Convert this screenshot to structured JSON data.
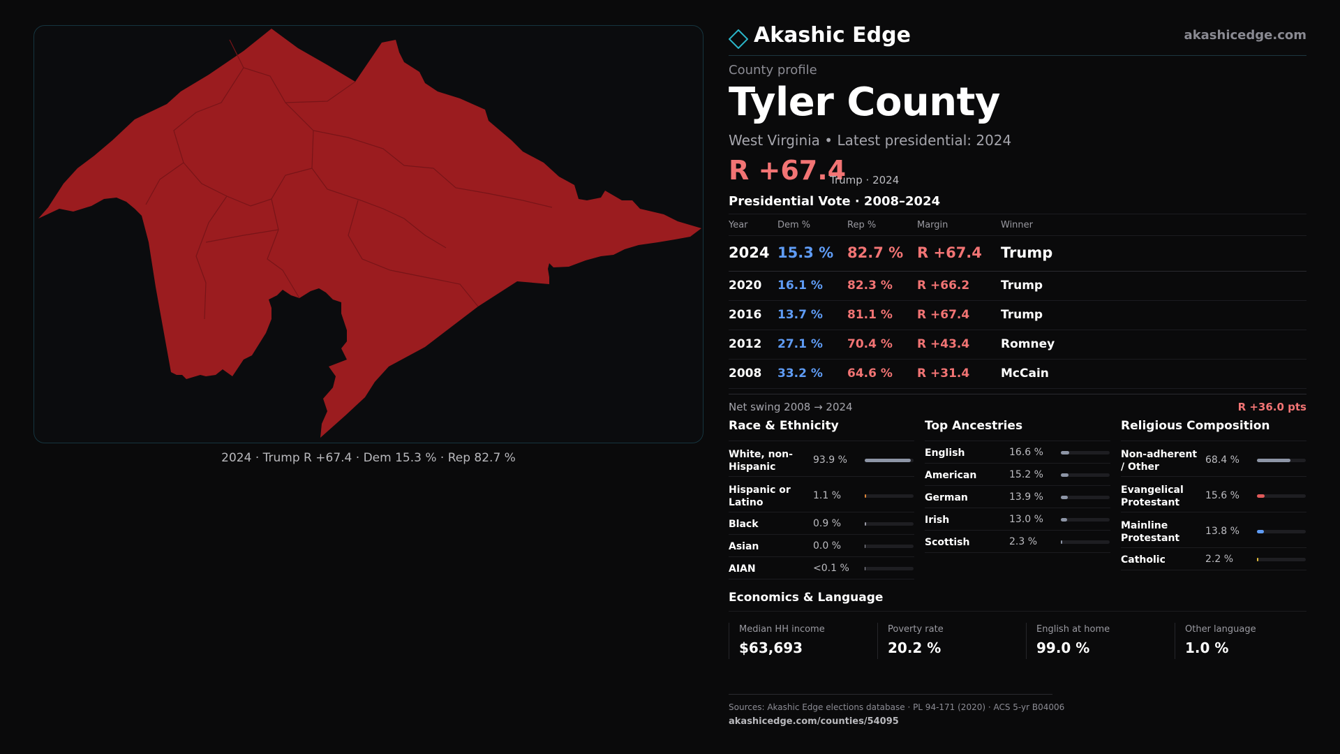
{
  "brand": {
    "name": "Akashic Edge",
    "url": "akashicedge.com"
  },
  "header": {
    "eyebrow": "County profile",
    "county": "Tyler County",
    "subtitle": "West Virginia • Latest presidential: 2024",
    "margin": "R +67.4",
    "margin_note": "Trump · 2024"
  },
  "map": {
    "caption": "2024 · Trump R +67.4 · Dem 15.3 % · Rep 82.7 %",
    "fill_color": "#9b1c1f"
  },
  "vote": {
    "heading": "Presidential Vote · 2008–2024",
    "columns": {
      "year": "Year",
      "dem": "Dem %",
      "rep": "Rep %",
      "margin": "Margin",
      "winner": "Winner"
    },
    "rows": [
      {
        "year": "2024",
        "dem": "15.3 %",
        "rep": "82.7 %",
        "margin": "R +67.4",
        "winner": "Trump"
      },
      {
        "year": "2020",
        "dem": "16.1 %",
        "rep": "82.3 %",
        "margin": "R +66.2",
        "winner": "Trump"
      },
      {
        "year": "2016",
        "dem": "13.7 %",
        "rep": "81.1 %",
        "margin": "R +67.4",
        "winner": "Trump"
      },
      {
        "year": "2012",
        "dem": "27.1 %",
        "rep": "70.4 %",
        "margin": "R +43.4",
        "winner": "Romney"
      },
      {
        "year": "2008",
        "dem": "33.2 %",
        "rep": "64.6 %",
        "margin": "R +31.4",
        "winner": "McCain"
      }
    ],
    "swing_label": "Net swing 2008 → 2024",
    "swing_value": "R +36.0 pts"
  },
  "race": {
    "title": "Race & Ethnicity",
    "items": [
      {
        "label": "White, non-Hispanic",
        "value": "93.9 %",
        "share": 0.939,
        "color": "#8d95a6"
      },
      {
        "label": "Hispanic or Latino",
        "value": "1.1 %",
        "share": 0.011,
        "color": "#e0873a"
      },
      {
        "label": "Black",
        "value": "0.9 %",
        "share": 0.009,
        "color": "#9a9aa6"
      },
      {
        "label": "Asian",
        "value": "0.0 %",
        "share": 0.0,
        "color": "#9a9aa6"
      },
      {
        "label": "AIAN",
        "value": "<0.1 %",
        "share": 0.0,
        "color": "#9a9aa6"
      }
    ]
  },
  "ancestry": {
    "title": "Top Ancestries",
    "items": [
      {
        "label": "English",
        "value": "16.6 %",
        "share": 0.166,
        "color": "#8d95a6"
      },
      {
        "label": "American",
        "value": "15.2 %",
        "share": 0.152,
        "color": "#8d95a6"
      },
      {
        "label": "German",
        "value": "13.9 %",
        "share": 0.139,
        "color": "#8d95a6"
      },
      {
        "label": "Irish",
        "value": "13.0 %",
        "share": 0.13,
        "color": "#8d95a6"
      },
      {
        "label": "Scottish",
        "value": "2.3 %",
        "share": 0.023,
        "color": "#8d95a6"
      }
    ]
  },
  "religion": {
    "title": "Religious Composition",
    "items": [
      {
        "label": "Non-adherent / Other",
        "value": "68.4 %",
        "share": 0.684,
        "color": "#8d95a6"
      },
      {
        "label": "Evangelical Protestant",
        "value": "15.6 %",
        "share": 0.156,
        "color": "#e05a5a"
      },
      {
        "label": "Mainline Protestant",
        "value": "13.8 %",
        "share": 0.138,
        "color": "#5f9cf5"
      },
      {
        "label": "Catholic",
        "value": "2.2 %",
        "share": 0.022,
        "color": "#e6c03a"
      }
    ]
  },
  "economics": {
    "title": "Economics & Language",
    "cells": [
      {
        "label": "Median HH income",
        "value": "$63,693"
      },
      {
        "label": "Poverty rate",
        "value": "20.2 %"
      },
      {
        "label": "English at home",
        "value": "99.0 %"
      },
      {
        "label": "Other language",
        "value": "1.0 %"
      }
    ]
  },
  "footer": {
    "sources": "Sources: Akashic Edge elections database · PL 94-171 (2020) · ACS 5-yr B04006",
    "url": "akashicedge.com/counties/54095"
  }
}
